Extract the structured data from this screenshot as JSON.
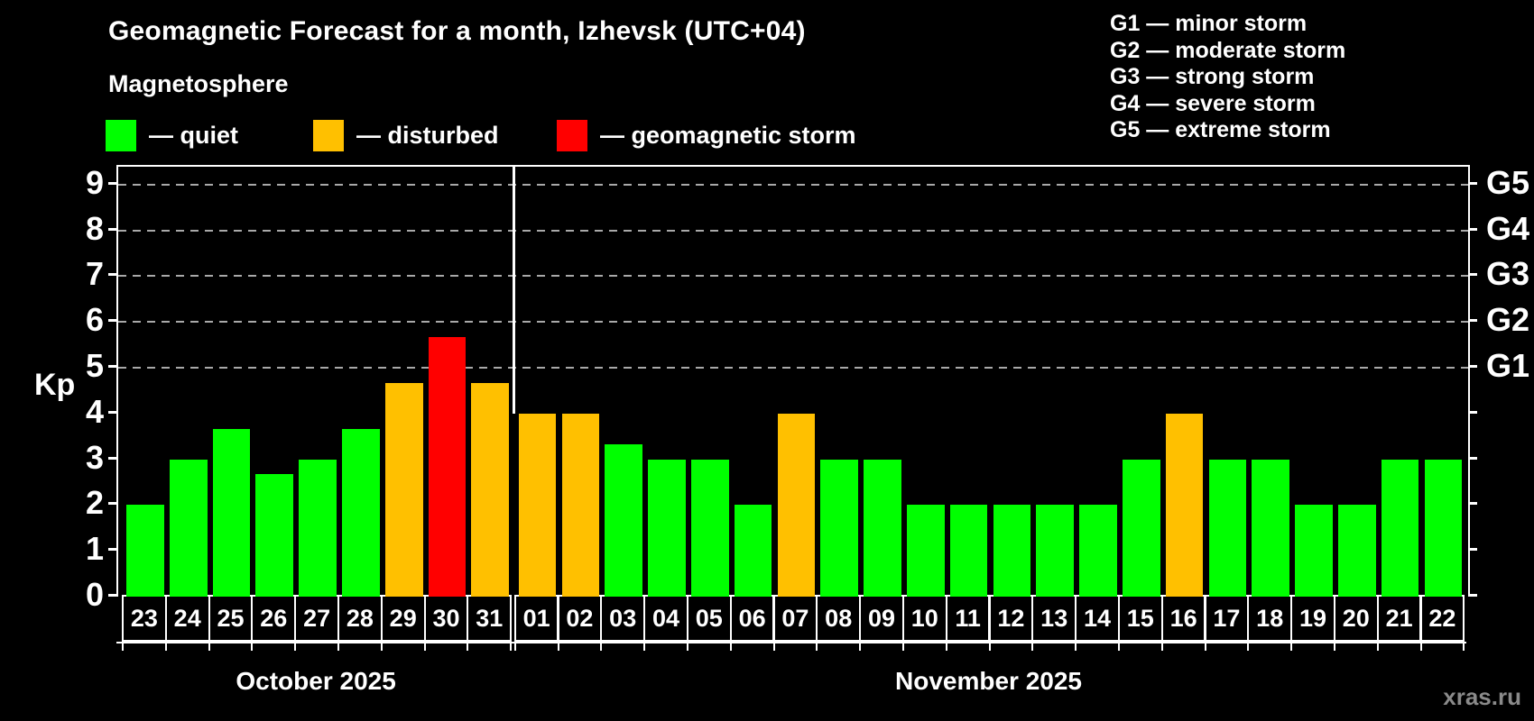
{
  "header": {
    "title": "Geomagnetic Forecast for a month, Izhevsk (UTC+04)",
    "subtitle": "Magnetosphere"
  },
  "legend": [
    {
      "key": "quiet",
      "label": "— quiet",
      "color": "#00ff00",
      "x": 117
    },
    {
      "key": "disturbed",
      "label": "— disturbed",
      "color": "#ffc000",
      "x": 347
    },
    {
      "key": "storm",
      "label": "— geomagnetic storm",
      "color": "#ff0000",
      "x": 617
    }
  ],
  "g_legend": [
    "G1 — minor storm",
    "G2 — moderate storm",
    "G3 — strong storm",
    "G4 — severe storm",
    "G5 — extreme storm"
  ],
  "y_axis": {
    "label": "Kp",
    "ticks": [
      0,
      1,
      2,
      3,
      4,
      5,
      6,
      7,
      8,
      9
    ]
  },
  "right_axis": {
    "tick_values": [
      0,
      1,
      2,
      3,
      4,
      5,
      6,
      7,
      8,
      9
    ],
    "labels": [
      {
        "text": "G1",
        "value": 5
      },
      {
        "text": "G2",
        "value": 6
      },
      {
        "text": "G3",
        "value": 7
      },
      {
        "text": "G4",
        "value": 8
      },
      {
        "text": "G5",
        "value": 9
      }
    ]
  },
  "watermark": "xras.ru",
  "chart_data": {
    "type": "bar",
    "title": "Geomagnetic Forecast for a month, Izhevsk (UTC+04)",
    "ylabel": "Kp",
    "ylim": [
      0,
      9
    ],
    "grid": "dashed horizontal at 5-9 only",
    "gridline_values": [
      5,
      6,
      7,
      8,
      9
    ],
    "status_colors": {
      "quiet": "#00ff00",
      "disturbed": "#ffc000",
      "storm": "#ff0000"
    },
    "months": [
      {
        "label": "October 2025",
        "days": [
          {
            "day": "23",
            "kp": 2,
            "status": "quiet"
          },
          {
            "day": "24",
            "kp": 3,
            "status": "quiet"
          },
          {
            "day": "25",
            "kp": 3.67,
            "status": "quiet"
          },
          {
            "day": "26",
            "kp": 2.67,
            "status": "quiet"
          },
          {
            "day": "27",
            "kp": 3,
            "status": "quiet"
          },
          {
            "day": "28",
            "kp": 3.67,
            "status": "quiet"
          },
          {
            "day": "29",
            "kp": 4.67,
            "status": "disturbed"
          },
          {
            "day": "30",
            "kp": 5.67,
            "status": "storm"
          },
          {
            "day": "31",
            "kp": 4.67,
            "status": "disturbed"
          }
        ]
      },
      {
        "label": "November 2025",
        "days": [
          {
            "day": "01",
            "kp": 4,
            "status": "disturbed"
          },
          {
            "day": "02",
            "kp": 4,
            "status": "disturbed"
          },
          {
            "day": "03",
            "kp": 3.33,
            "status": "quiet"
          },
          {
            "day": "04",
            "kp": 3,
            "status": "quiet"
          },
          {
            "day": "05",
            "kp": 3,
            "status": "quiet"
          },
          {
            "day": "06",
            "kp": 2,
            "status": "quiet"
          },
          {
            "day": "07",
            "kp": 4,
            "status": "disturbed"
          },
          {
            "day": "08",
            "kp": 3,
            "status": "quiet"
          },
          {
            "day": "09",
            "kp": 3,
            "status": "quiet"
          },
          {
            "day": "10",
            "kp": 2,
            "status": "quiet"
          },
          {
            "day": "11",
            "kp": 2,
            "status": "quiet"
          },
          {
            "day": "12",
            "kp": 2,
            "status": "quiet"
          },
          {
            "day": "13",
            "kp": 2,
            "status": "quiet"
          },
          {
            "day": "14",
            "kp": 2,
            "status": "quiet"
          },
          {
            "day": "15",
            "kp": 3,
            "status": "quiet"
          },
          {
            "day": "16",
            "kp": 4,
            "status": "disturbed"
          },
          {
            "day": "17",
            "kp": 3,
            "status": "quiet"
          },
          {
            "day": "18",
            "kp": 3,
            "status": "quiet"
          },
          {
            "day": "19",
            "kp": 2,
            "status": "quiet"
          },
          {
            "day": "20",
            "kp": 2,
            "status": "quiet"
          },
          {
            "day": "21",
            "kp": 3,
            "status": "quiet"
          },
          {
            "day": "22",
            "kp": 3,
            "status": "quiet"
          }
        ]
      }
    ]
  }
}
